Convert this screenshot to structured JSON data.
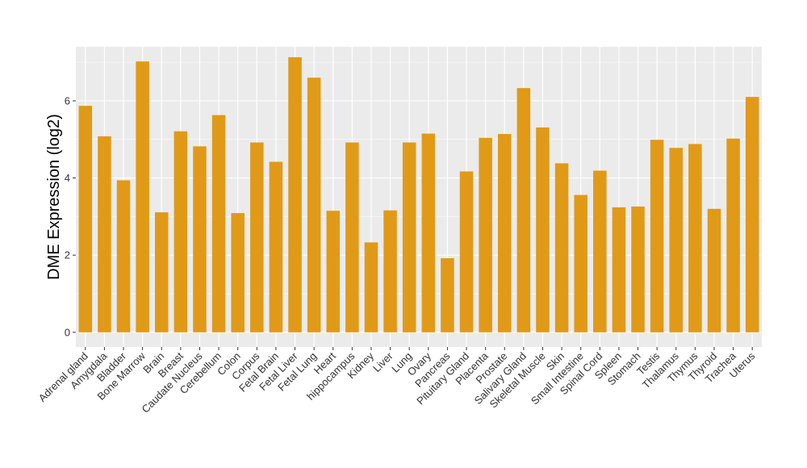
{
  "chart_data": {
    "type": "bar",
    "ylabel": "DME Expression (log2)",
    "xlabel": "",
    "ylim": [
      -0.38,
      7.4
    ],
    "yticks": [
      0,
      2,
      4,
      6
    ],
    "grid": true,
    "bar_color": "#E09A18",
    "panel_background": "#EBEBEB",
    "gridline_color": "#FFFFFF",
    "categories": [
      "Adrenal gland",
      "Amygdala",
      "Bladder",
      "Bone Marrow",
      "Brain",
      "Breast",
      "Caudate Nucleus",
      "Cerebellum",
      "Colon",
      "Corpus",
      "Fetal Brain",
      "Fetal Liver",
      "Fetal Lung",
      "Heart",
      "hippocampus",
      "Kidney",
      "Liver",
      "Lung",
      "Ovary",
      "Pancreas",
      "Pituitary Gland",
      "Placenta",
      "Prostate",
      "Salivary Gland",
      "Skeletal Muscle",
      "Skin",
      "Small Intestine",
      "Spinal Cord",
      "Spleen",
      "Stomach",
      "Testis",
      "Thalamus",
      "Thymus",
      "Thyroid",
      "Trachea",
      "Uterus"
    ],
    "values": [
      5.87,
      5.08,
      3.94,
      7.02,
      3.11,
      5.21,
      4.82,
      5.63,
      3.09,
      4.92,
      4.42,
      7.13,
      6.6,
      3.15,
      4.92,
      2.33,
      3.16,
      4.92,
      5.15,
      1.92,
      4.17,
      5.04,
      5.14,
      6.33,
      5.31,
      4.38,
      3.56,
      4.19,
      3.24,
      3.26,
      4.99,
      4.78,
      4.88,
      3.2,
      5.02,
      6.1
    ]
  }
}
